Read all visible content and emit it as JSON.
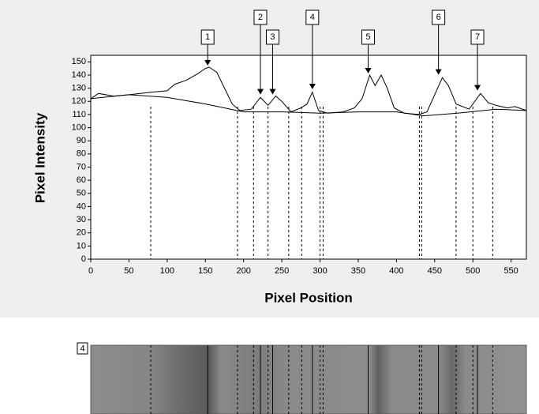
{
  "chart_data": {
    "type": "line",
    "xlabel": "Pixel Position",
    "ylabel": "Pixel Intensity",
    "xlim": [
      0,
      570
    ],
    "ylim": [
      0,
      155
    ],
    "xticks": [
      0,
      50,
      100,
      150,
      200,
      250,
      300,
      350,
      400,
      450,
      500,
      550
    ],
    "yticks": [
      0,
      10,
      20,
      30,
      40,
      50,
      60,
      70,
      80,
      90,
      100,
      110,
      120,
      130,
      140,
      150
    ],
    "series": [
      {
        "color": "#000000",
        "x": [
          0,
          10,
          30,
          50,
          80,
          100,
          110,
          125,
          140,
          150,
          155,
          165,
          175,
          185,
          195,
          210,
          222,
          232,
          242,
          250,
          262,
          275,
          283,
          290,
          298,
          310,
          330,
          345,
          355,
          365,
          372,
          380,
          388,
          397,
          410,
          430,
          440,
          450,
          460,
          468,
          478,
          495,
          510,
          520,
          530,
          545,
          555,
          570
        ],
        "values": [
          122,
          126,
          124,
          125,
          127,
          128,
          133,
          136,
          141,
          145,
          146,
          142,
          130,
          118,
          113,
          114,
          123,
          117,
          124,
          120,
          112,
          115,
          118,
          127,
          113,
          111,
          112,
          115,
          122,
          140,
          132,
          140,
          130,
          115,
          111,
          110,
          112,
          125,
          138,
          132,
          118,
          114,
          126,
          119,
          117,
          115,
          116,
          113
        ]
      },
      {
        "color": "#000000",
        "x": [
          0,
          50,
          100,
          150,
          200,
          250,
          300,
          350,
          400,
          435,
          480,
          530,
          570
        ],
        "values": [
          122,
          125,
          123,
          118,
          112,
          112,
          111,
          112,
          112,
          109,
          111,
          114,
          113
        ]
      }
    ],
    "boundaries": [
      78.5,
      192,
      213,
      232,
      259,
      276,
      300,
      304,
      430,
      433,
      478,
      500,
      526
    ],
    "peaks": [
      {
        "label": "1",
        "x": 153,
        "y": 146
      },
      {
        "label": "2",
        "x": 222,
        "y": 124
      },
      {
        "label": "3",
        "x": 238,
        "y": 124
      },
      {
        "label": "4",
        "x": 290,
        "y": 128
      },
      {
        "label": "5",
        "x": 363,
        "y": 140
      },
      {
        "label": "6",
        "x": 455,
        "y": 139
      },
      {
        "label": "7",
        "x": 506,
        "y": 127
      }
    ]
  },
  "gel": {
    "label": "4"
  }
}
